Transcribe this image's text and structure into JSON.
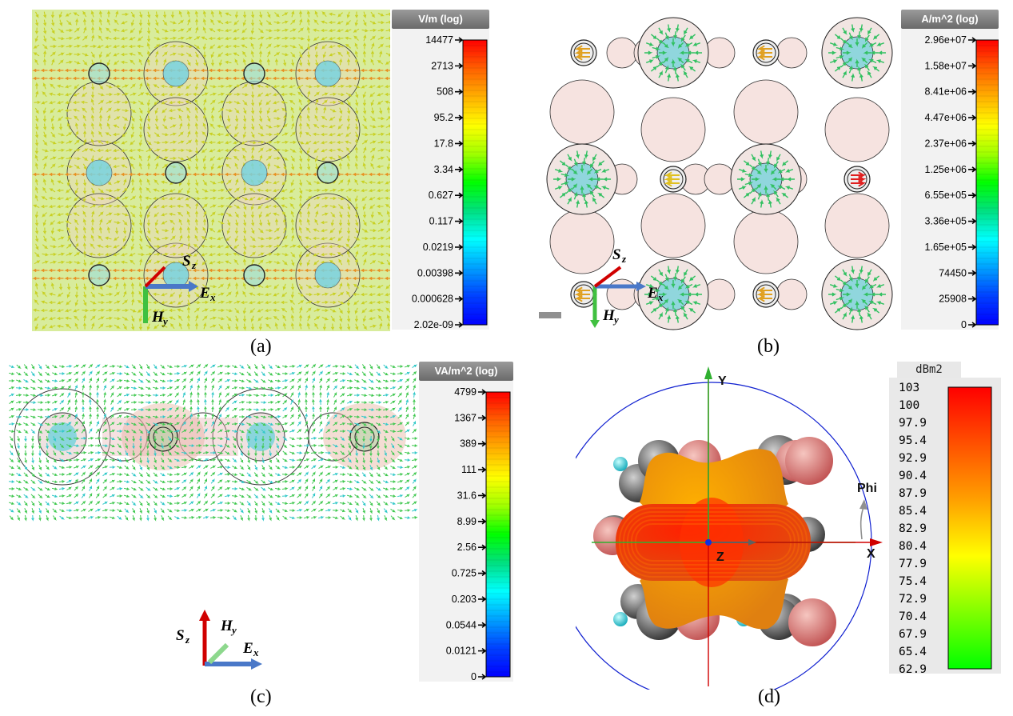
{
  "panel_a": {
    "caption": "(a)",
    "colorbar_title": "V/m (log)",
    "ticks": [
      "14477",
      "2713",
      "508",
      "95.2",
      "17.8",
      "3.34",
      "0.627",
      "0.117",
      "0.0219",
      "0.00398",
      "0.000628",
      "2.02e-09"
    ]
  },
  "panel_b": {
    "caption": "(b)",
    "colorbar_title": "A/m^2 (log)",
    "ticks": [
      "2.96e+07",
      "1.58e+07",
      "8.41e+06",
      "4.47e+06",
      "2.37e+06",
      "1.25e+06",
      "6.55e+05",
      "3.36e+05",
      "1.65e+05",
      "74450",
      "25908",
      "0"
    ]
  },
  "panel_c": {
    "caption": "(c)",
    "colorbar_title": "VA/m^2 (log)",
    "ticks": [
      "4799",
      "1367",
      "389",
      "111",
      "31.6",
      "8.99",
      "2.56",
      "0.725",
      "0.203",
      "0.0544",
      "0.0121",
      "0"
    ]
  },
  "panel_d": {
    "caption": "(d)",
    "colorbar_title": "dBm2",
    "ticks": [
      "103",
      "100",
      "97.9",
      "95.4",
      "92.9",
      "90.4",
      "87.9",
      "85.4",
      "82.9",
      "80.4",
      "77.9",
      "75.4",
      "72.9",
      "70.4",
      "67.9",
      "65.4",
      "62.9"
    ],
    "axis_y": "Y",
    "axis_x": "X",
    "axis_z": "Z",
    "phi_label": "Phi"
  },
  "vectors": {
    "s": "S",
    "s_sub": "z",
    "e": "E",
    "e_sub": "x",
    "h": "H",
    "h_sub": "y"
  },
  "colors": {
    "jet": [
      "#ff0000",
      "#ff6000",
      "#ffb000",
      "#ffff00",
      "#a0ff00",
      "#00ff00",
      "#00e080",
      "#00ffff",
      "#00a0ff",
      "#0040ff",
      "#0000ff"
    ],
    "rcs": [
      "#ff0000",
      "#ff5000",
      "#ffa000",
      "#ffff00",
      "#80ff00",
      "#00ff00"
    ],
    "sphere_large": "#f6e3e0",
    "sphere_gray": "#808080",
    "sphere_cyan": "#20e0e8",
    "axis_red": "#d00000",
    "axis_green": "#40c040",
    "axis_blue": "#4a78c8"
  }
}
